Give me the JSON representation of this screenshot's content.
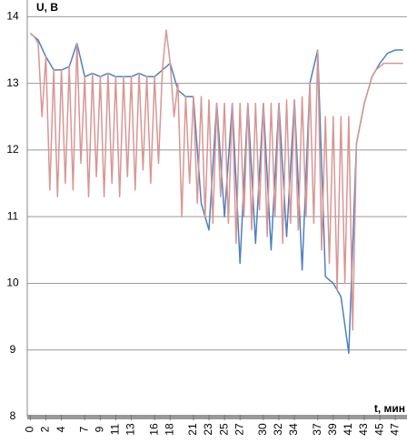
{
  "chart_data": {
    "type": "line",
    "title": "U, B",
    "x_label": "t, мин",
    "xlim": [
      -0.4,
      48.5
    ],
    "ylim": [
      8,
      14.25
    ],
    "xticks": [
      0,
      2,
      4,
      7,
      9,
      11,
      13,
      16,
      18,
      21,
      23,
      25,
      27,
      30,
      32,
      34,
      37,
      39,
      41,
      43,
      45,
      47
    ],
    "yticks": [
      8,
      9,
      10,
      11,
      12,
      13,
      14
    ],
    "grid": true,
    "series": [
      {
        "color": "#4f81bd",
        "x": [
          0,
          1,
          2,
          3,
          4,
          5,
          6,
          7,
          8,
          9,
          10,
          11,
          12,
          13,
          14,
          15,
          16,
          17,
          18,
          19,
          20,
          21,
          22,
          23,
          24,
          25,
          26,
          27,
          28,
          29,
          30,
          31,
          32,
          33,
          34,
          35,
          36,
          37,
          38,
          39,
          40,
          41,
          42,
          43,
          44,
          45,
          46,
          47,
          48
        ],
        "values": [
          13.75,
          13.65,
          13.4,
          13.2,
          13.2,
          13.25,
          13.6,
          13.1,
          13.15,
          13.1,
          13.15,
          13.1,
          13.1,
          13.1,
          13.15,
          13.1,
          13.1,
          13.2,
          13.3,
          12.9,
          12.8,
          12.8,
          11.2,
          10.8,
          12.7,
          11.0,
          12.7,
          10.3,
          12.7,
          10.6,
          12.7,
          10.5,
          12.7,
          10.7,
          12.75,
          10.2,
          13.0,
          13.5,
          10.1,
          10.0,
          9.8,
          8.95,
          12.1,
          12.7,
          13.1,
          13.3,
          13.45,
          13.5,
          13.5
        ]
      },
      {
        "color": "#d99694",
        "x": [
          0,
          0.5,
          1,
          1.5,
          2,
          2.5,
          3,
          3.5,
          4,
          4.5,
          5,
          5.5,
          6,
          6.5,
          7,
          7.5,
          8,
          8.5,
          9,
          9.5,
          10,
          10.5,
          11,
          11.5,
          12,
          12.5,
          13,
          13.5,
          14,
          14.5,
          15,
          15.5,
          16,
          16.5,
          17,
          17.5,
          18,
          18.5,
          19,
          19.5,
          20,
          20.5,
          21,
          21.5,
          22,
          22.5,
          23,
          23.5,
          24,
          24.5,
          25,
          25.5,
          26,
          26.5,
          27,
          27.5,
          28,
          28.5,
          29,
          29.5,
          30,
          30.5,
          31,
          31.5,
          32,
          32.5,
          33,
          33.5,
          34,
          34.5,
          35,
          35.5,
          36,
          36.5,
          37,
          37.5,
          38,
          38.5,
          39,
          39.5,
          40,
          40.5,
          41,
          41.5,
          42,
          42.5,
          43,
          43.5,
          44,
          44.5,
          45,
          45.5,
          46,
          46.5,
          47,
          47.5,
          48
        ],
        "values": [
          13.75,
          13.7,
          13.6,
          12.5,
          13.4,
          11.4,
          13.2,
          11.3,
          13.2,
          11.5,
          13.25,
          11.4,
          13.6,
          11.8,
          13.1,
          11.3,
          13.15,
          11.6,
          13.1,
          11.3,
          13.15,
          11.5,
          13.1,
          11.3,
          13.1,
          11.6,
          13.1,
          11.4,
          13.15,
          11.7,
          13.1,
          11.5,
          13.1,
          11.8,
          13.2,
          13.8,
          13.3,
          12.5,
          13.0,
          11.0,
          12.8,
          11.5,
          12.8,
          11.2,
          12.8,
          11.0,
          12.75,
          10.9,
          12.7,
          11.3,
          12.7,
          10.9,
          12.7,
          10.6,
          12.7,
          11.0,
          12.7,
          10.8,
          12.7,
          11.1,
          12.7,
          10.7,
          12.7,
          11.0,
          12.7,
          10.6,
          12.75,
          10.9,
          12.75,
          10.8,
          12.8,
          11.0,
          13.0,
          10.9,
          13.5,
          10.5,
          12.5,
          10.3,
          12.5,
          9.9,
          12.5,
          10.0,
          12.5,
          9.3,
          12.1,
          12.4,
          12.7,
          12.9,
          13.1,
          13.2,
          13.25,
          13.3,
          13.3,
          13.3,
          13.3,
          13.3,
          13.3
        ]
      }
    ]
  }
}
